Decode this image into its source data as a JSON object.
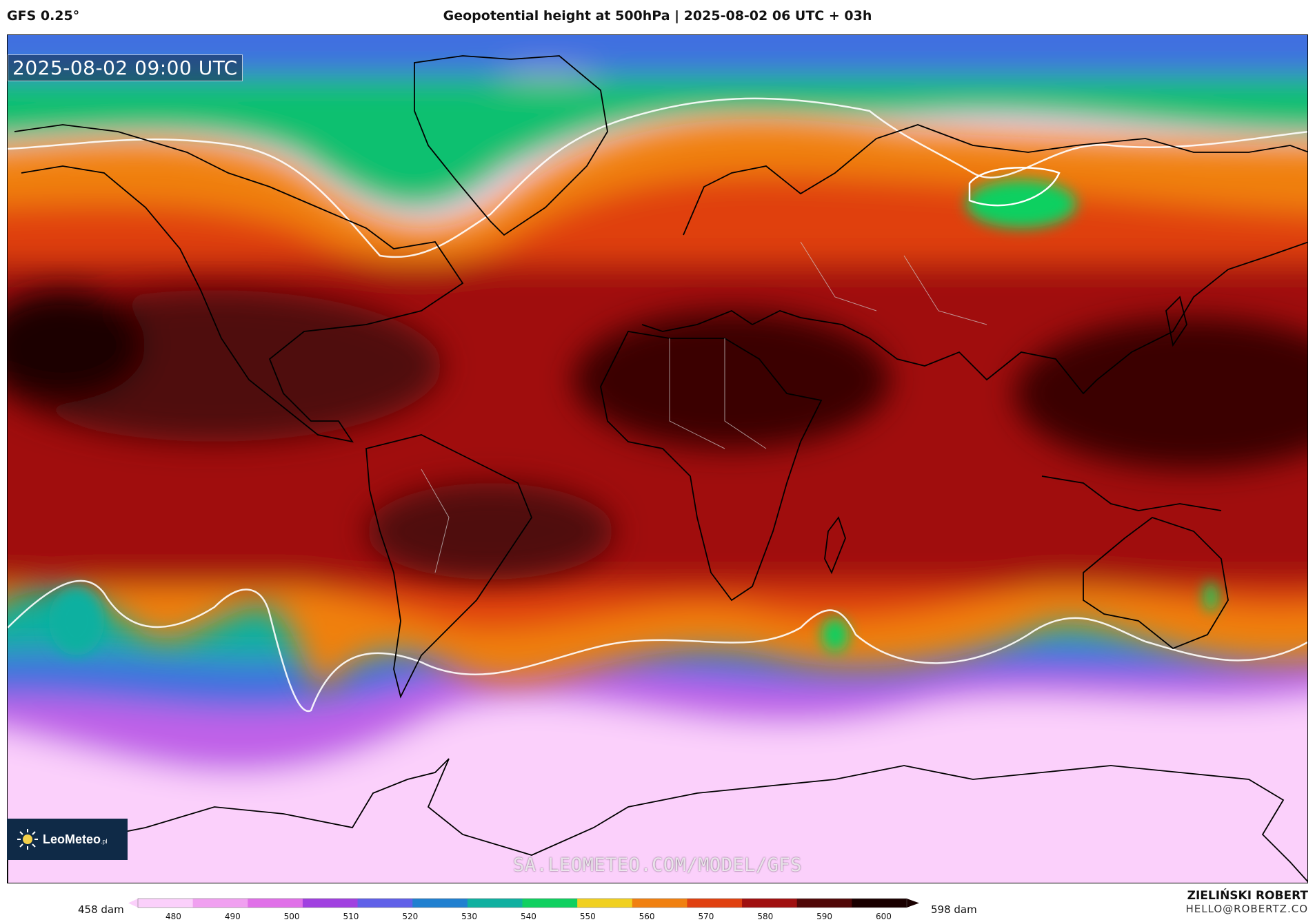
{
  "header": {
    "model": "GFS 0.25°",
    "title": "Geopotential height at 500hPa | 2025-08-02 06 UTC + 03h"
  },
  "map": {
    "valid_time": "2025-08-02 09:00 UTC",
    "watermark": "SA.LEOMETEO.COM/MODEL/GFS",
    "logo": {
      "name": "LeoMeteo",
      "suffix": ".pl"
    }
  },
  "colorbar": {
    "min_label": "458 dam",
    "max_label": "598 dam",
    "ticks": [
      "480",
      "490",
      "500",
      "510",
      "520",
      "530",
      "540",
      "550",
      "560",
      "570",
      "580",
      "590",
      "600"
    ],
    "colors": [
      "#fbd0fb",
      "#f0a0f0",
      "#e070e8",
      "#a040e0",
      "#6060e8",
      "#2080d0",
      "#10b0a0",
      "#10d060",
      "#f0d020",
      "#f08010",
      "#e04010",
      "#a01010",
      "#500808",
      "#1a0000"
    ]
  },
  "footer": {
    "author": "ZIELIŃSKI ROBERT",
    "email": "HELLO@ROBERTZ.CO"
  }
}
